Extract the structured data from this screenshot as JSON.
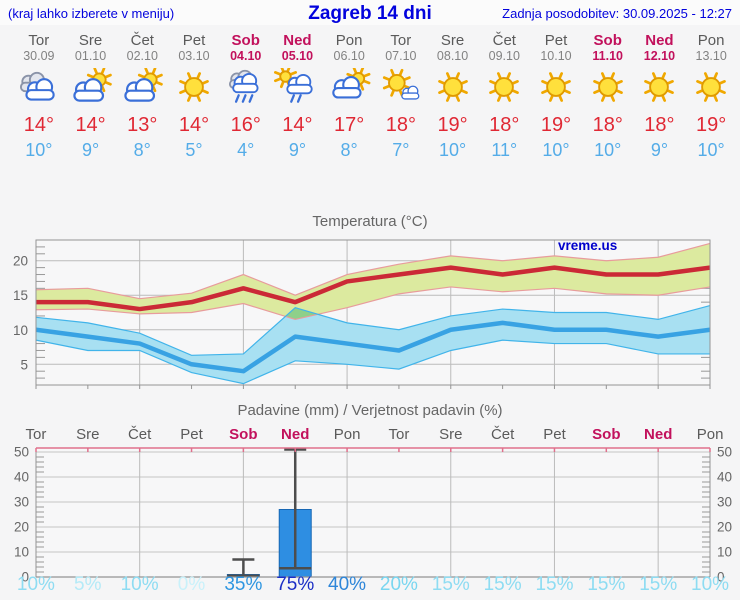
{
  "header": {
    "hint": "(kraj lahko izberete v meniju)",
    "title": "Zagreb 14 dni",
    "updated": "Zadnja posodobitev: 30.09.2025 - 12:27"
  },
  "colors": {
    "header_blue": "#0202dd",
    "weekday_gray": "#5a5a5a",
    "date_gray": "#828282",
    "weekend_crimson": "#c2115c",
    "max_temp_red": "#e02834",
    "min_temp_blue": "#54ace8",
    "title_gray": "#666666"
  },
  "forecast": {
    "days": [
      {
        "day": "Tor",
        "date": "30.09",
        "weekend": false,
        "icon": "cloudy",
        "max": "14°",
        "min": "10°"
      },
      {
        "day": "Sre",
        "date": "01.10",
        "weekend": false,
        "icon": "sun-cloud",
        "max": "14°",
        "min": "9°"
      },
      {
        "day": "Čet",
        "date": "02.10",
        "weekend": false,
        "icon": "sun-cloud",
        "max": "13°",
        "min": "8°"
      },
      {
        "day": "Pet",
        "date": "03.10",
        "weekend": false,
        "icon": "sunny",
        "max": "14°",
        "min": "5°"
      },
      {
        "day": "Sob",
        "date": "04.10",
        "weekend": true,
        "icon": "rain",
        "max": "16°",
        "min": "4°"
      },
      {
        "day": "Ned",
        "date": "05.10",
        "weekend": true,
        "icon": "sun-rain",
        "max": "14°",
        "min": "9°"
      },
      {
        "day": "Pon",
        "date": "06.10",
        "weekend": false,
        "icon": "cloud-sun",
        "max": "17°",
        "min": "8°"
      },
      {
        "day": "Tor",
        "date": "07.10",
        "weekend": false,
        "icon": "sun-small-cloud",
        "max": "18°",
        "min": "7°"
      },
      {
        "day": "Sre",
        "date": "08.10",
        "weekend": false,
        "icon": "sunny",
        "max": "19°",
        "min": "10°"
      },
      {
        "day": "Čet",
        "date": "09.10",
        "weekend": false,
        "icon": "sunny",
        "max": "18°",
        "min": "11°"
      },
      {
        "day": "Pet",
        "date": "10.10",
        "weekend": false,
        "icon": "sunny",
        "max": "19°",
        "min": "10°"
      },
      {
        "day": "Sob",
        "date": "11.10",
        "weekend": true,
        "icon": "sunny",
        "max": "18°",
        "min": "10°"
      },
      {
        "day": "Ned",
        "date": "12.10",
        "weekend": true,
        "icon": "sunny",
        "max": "18°",
        "min": "9°"
      },
      {
        "day": "Pon",
        "date": "13.10",
        "weekend": false,
        "icon": "sunny",
        "max": "19°",
        "min": "10°"
      }
    ]
  },
  "chart_data": [
    {
      "type": "line",
      "title": "Temperatura (°C)",
      "watermark": "vreme.us",
      "days": [
        "Tor",
        "Sre",
        "Čet",
        "Pet",
        "Sob",
        "Ned",
        "Pon",
        "Tor",
        "Sre",
        "Čet",
        "Pet",
        "Sob",
        "Ned",
        "Pon"
      ],
      "yticks": [
        5,
        10,
        15,
        20
      ],
      "ylim": [
        2,
        23
      ],
      "grid": "on",
      "series": [
        {
          "name": "max temperature",
          "color": "#cb2936",
          "values": [
            14,
            14,
            13,
            14,
            16,
            14,
            17,
            18,
            19,
            18,
            19,
            18,
            18,
            19
          ],
          "band_upper": [
            15.8,
            16,
            14.5,
            15.3,
            18,
            15,
            18,
            19.5,
            20.7,
            20,
            20.7,
            20,
            20.5,
            22.5
          ],
          "band_lower": [
            12.9,
            13,
            12.3,
            12.5,
            13.8,
            11.5,
            13.2,
            15.2,
            16.2,
            15.5,
            16,
            15.2,
            15,
            16.2
          ],
          "band_fill": "#dcea9f",
          "band_edge": "#e89c9c"
        },
        {
          "name": "min temperature",
          "color": "#38a2e3",
          "values": [
            10,
            9,
            8,
            5,
            4,
            9,
            8,
            7,
            10,
            11,
            10,
            10,
            9,
            10
          ],
          "band_upper": [
            11.8,
            11,
            9.5,
            6.3,
            6.5,
            13.2,
            11,
            10,
            12,
            13,
            12.5,
            12.5,
            11.5,
            13.5
          ],
          "band_lower": [
            8.5,
            7,
            7,
            3.8,
            2.2,
            5.5,
            5,
            4.3,
            7,
            8.5,
            8,
            8,
            6.5,
            6.5
          ],
          "band_fill": "#a8e0f2",
          "band_edge": "#41b4ea"
        }
      ],
      "band_overlap_fill": "#8ed08a"
    },
    {
      "type": "bar",
      "title": "Padavine (mm) / Verjetnost padavin (%)",
      "days": [
        "Tor",
        "Sre",
        "Čet",
        "Pet",
        "Sob",
        "Ned",
        "Pon",
        "Tor",
        "Sre",
        "Čet",
        "Pet",
        "Sob",
        "Ned",
        "Pon"
      ],
      "weekend": [
        false,
        false,
        false,
        false,
        true,
        true,
        false,
        false,
        false,
        false,
        false,
        true,
        true,
        false
      ],
      "values": [
        0,
        0,
        0,
        0,
        1,
        27,
        0,
        0,
        0,
        0,
        0,
        0,
        0,
        0
      ],
      "whisker_low": [
        null,
        null,
        null,
        null,
        0.5,
        3.5,
        null,
        null,
        null,
        null,
        null,
        null,
        null,
        null
      ],
      "whisker_high": [
        null,
        null,
        null,
        null,
        7,
        51,
        null,
        null,
        null,
        null,
        null,
        null,
        null,
        null
      ],
      "probabilities": [
        "10%",
        "5%",
        "10%",
        "0%",
        "35%",
        "75%",
        "40%",
        "20%",
        "15%",
        "15%",
        "15%",
        "15%",
        "15%",
        "10%"
      ],
      "prob_colors": [
        "#8edcf2",
        "#b4eaf7",
        "#8edcf2",
        "#c9f1fa",
        "#2e96e1",
        "#1b2ec5",
        "#2e86d9",
        "#79d6f0",
        "#8edcf2",
        "#8edcf2",
        "#8edcf2",
        "#8edcf2",
        "#8edcf2",
        "#8edcf2"
      ],
      "yticks": [
        0,
        10,
        20,
        30,
        40,
        50
      ],
      "ylim": [
        0,
        51.6
      ],
      "bar_color": "#2e8ee2",
      "bar_edge": "#1767b4",
      "whisker_color": "#4d4d4d",
      "top_axis_color": "#e0708c"
    }
  ]
}
